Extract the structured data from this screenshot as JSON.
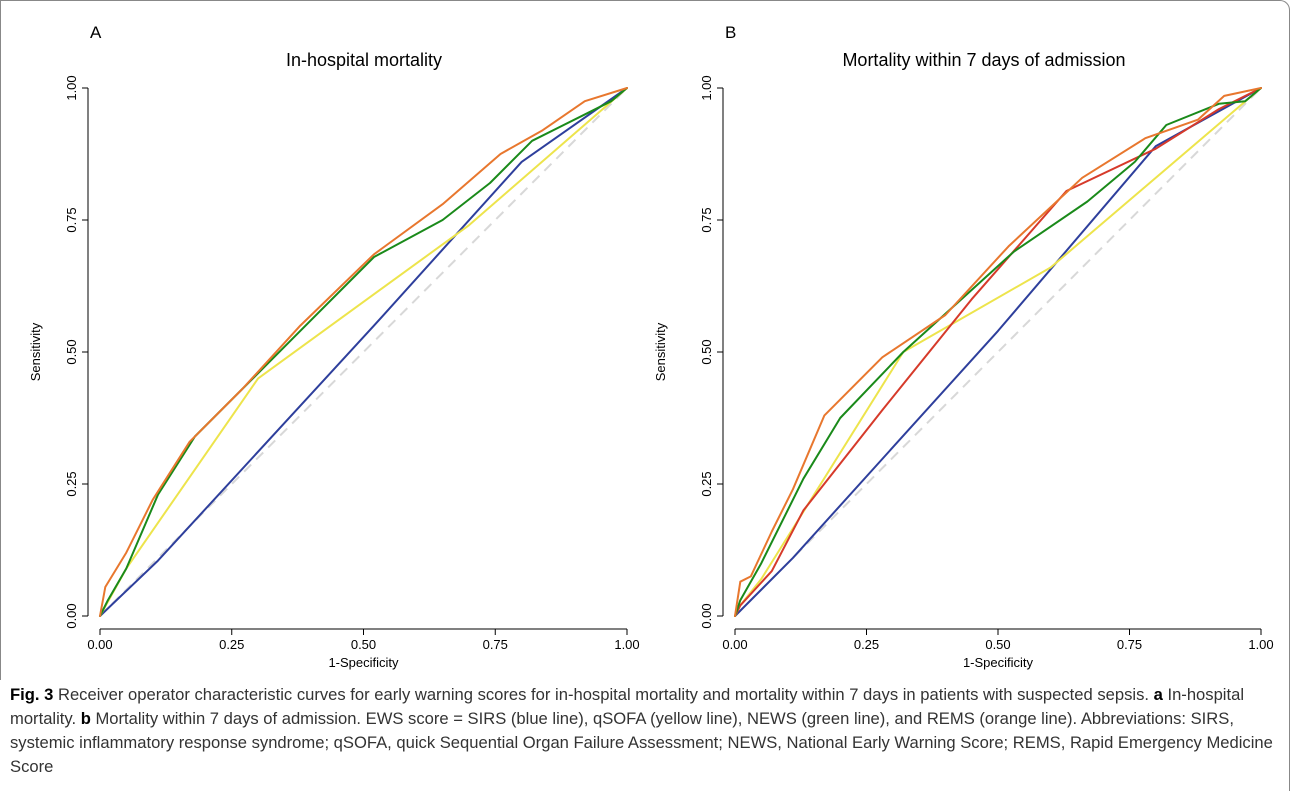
{
  "chart_data": [
    {
      "type": "line",
      "panel_label": "A",
      "title": "In-hospital mortality",
      "xlabel": "1-Specificity",
      "ylabel": "Sensitivity",
      "xlim": [
        0,
        1
      ],
      "ylim": [
        0,
        1
      ],
      "x_ticks": [
        "0.00",
        "0.25",
        "0.50",
        "0.75",
        "1.00"
      ],
      "y_ticks": [
        "0.00",
        "0.25",
        "0.50",
        "0.75",
        "1.00"
      ],
      "grid": false,
      "reference_line": {
        "x": [
          0,
          1
        ],
        "y": [
          0,
          1
        ],
        "color": "#d8d8d8",
        "dashed": true
      },
      "series": [
        {
          "color": "#2e3f9c",
          "x": [
            0,
            0.11,
            0.52,
            0.8,
            1.0
          ],
          "y": [
            0,
            0.105,
            0.55,
            0.86,
            1.0
          ]
        },
        {
          "color": "#ede44c",
          "x": [
            0,
            0.05,
            0.3,
            0.7,
            1.0
          ],
          "y": [
            0,
            0.09,
            0.45,
            0.74,
            1.0
          ]
        },
        {
          "color": "#1a8a1a",
          "x": [
            0,
            0.015,
            0.05,
            0.11,
            0.18,
            0.27,
            0.37,
            0.52,
            0.65,
            0.74,
            0.82,
            0.93,
            0.97,
            1.0
          ],
          "y": [
            0,
            0.03,
            0.09,
            0.23,
            0.34,
            0.43,
            0.53,
            0.68,
            0.75,
            0.82,
            0.9,
            0.955,
            0.975,
            1.0
          ]
        },
        {
          "color": "#e8772e",
          "x": [
            0,
            0.01,
            0.05,
            0.1,
            0.17,
            0.27,
            0.38,
            0.52,
            0.65,
            0.76,
            0.84,
            0.92,
            1.0
          ],
          "y": [
            0,
            0.055,
            0.12,
            0.22,
            0.33,
            0.43,
            0.55,
            0.685,
            0.78,
            0.875,
            0.92,
            0.975,
            1.0
          ]
        }
      ]
    },
    {
      "type": "line",
      "panel_label": "B",
      "title": "Mortality within 7 days of admission",
      "xlabel": "1-Specificity",
      "ylabel": "Sensitivity",
      "xlim": [
        0,
        1
      ],
      "ylim": [
        0,
        1
      ],
      "x_ticks": [
        "0.00",
        "0.25",
        "0.50",
        "0.75",
        "1.00"
      ],
      "y_ticks": [
        "0.00",
        "0.25",
        "0.50",
        "0.75",
        "1.00"
      ],
      "grid": false,
      "reference_line": {
        "x": [
          0,
          1
        ],
        "y": [
          0,
          1
        ],
        "color": "#d8d8d8",
        "dashed": true
      },
      "series": [
        {
          "color": "#2e3f9c",
          "x": [
            0,
            0.11,
            0.5,
            0.8,
            1.0
          ],
          "y": [
            0,
            0.11,
            0.54,
            0.89,
            1.0
          ]
        },
        {
          "color": "#ede44c",
          "x": [
            0,
            0.01,
            0.05,
            0.32,
            0.6,
            1.0
          ],
          "y": [
            0,
            0.02,
            0.07,
            0.5,
            0.66,
            1.0
          ]
        },
        {
          "color": "#d63a2a",
          "x": [
            0,
            0.01,
            0.07,
            0.13,
            0.28,
            0.45,
            0.63,
            0.8,
            0.92,
            1.0
          ],
          "y": [
            0,
            0.02,
            0.085,
            0.2,
            0.39,
            0.6,
            0.805,
            0.885,
            0.96,
            1.0
          ]
        },
        {
          "color": "#1a8a1a",
          "x": [
            0,
            0.01,
            0.05,
            0.13,
            0.2,
            0.32,
            0.53,
            0.67,
            0.76,
            0.82,
            0.92,
            0.97,
            1.0
          ],
          "y": [
            0,
            0.03,
            0.1,
            0.26,
            0.375,
            0.5,
            0.69,
            0.785,
            0.86,
            0.93,
            0.97,
            0.975,
            1.0
          ]
        },
        {
          "color": "#e8772e",
          "x": [
            0,
            0.01,
            0.03,
            0.07,
            0.11,
            0.17,
            0.28,
            0.4,
            0.52,
            0.66,
            0.78,
            0.88,
            0.93,
            1.0
          ],
          "y": [
            0,
            0.065,
            0.075,
            0.16,
            0.24,
            0.38,
            0.49,
            0.57,
            0.7,
            0.83,
            0.905,
            0.94,
            0.985,
            1.0
          ]
        }
      ]
    }
  ],
  "caption": {
    "label_prefix": "Fig. 3",
    "text_1": " Receiver operator characteristic curves for early warning scores for in-hospital mortality and mortality within 7 days in patients with suspected sepsis. ",
    "label_a": "a",
    "text_2": " In-hospital mortality. ",
    "label_b": "b",
    "text_3": " Mortality within 7 days of admission. EWS score = SIRS (blue line), qSOFA (yellow line), NEWS (green line), and REMS (orange line). Abbreviations: SIRS, systemic inflammatory response syndrome; qSOFA, quick Sequential Organ Failure Assessment; NEWS, National Early Warning Score; REMS, Rapid Emergency Medicine Score"
  }
}
